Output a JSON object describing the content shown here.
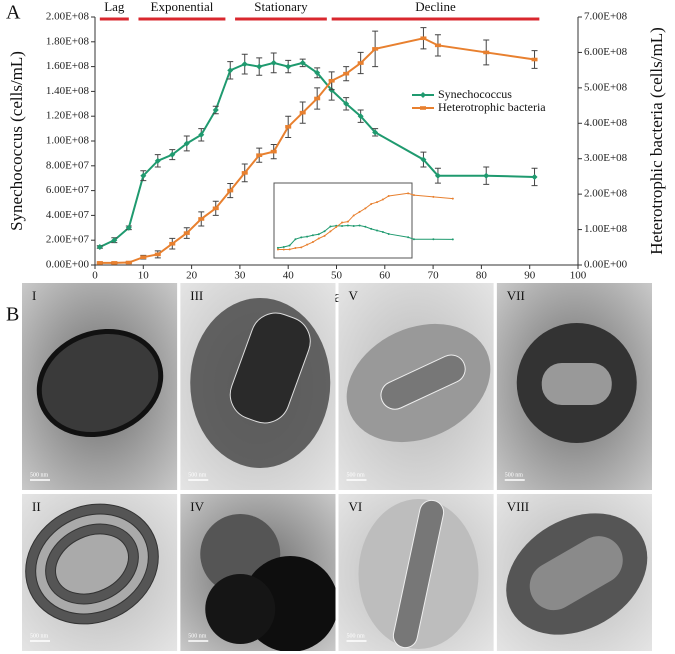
{
  "chart_data": {
    "type": "line",
    "panel_label": "A",
    "x_label": "Day",
    "y_label": "Synechococcus (cells/mL)",
    "y2_label": "Heterotrophic bacteria (cells/mL)",
    "x": [
      1,
      4,
      7,
      10,
      13,
      16,
      19,
      22,
      25,
      28,
      31,
      34,
      37,
      40,
      43,
      46,
      49,
      52,
      55,
      58,
      68,
      71,
      81,
      91
    ],
    "series": [
      {
        "name": "Synechococcus",
        "color": "#1f9a6f",
        "marker": "diamond",
        "values": [
          14500000,
          20000000,
          30000000,
          72000000,
          84000000,
          89000000,
          98000000,
          105000000,
          125000000,
          157000000,
          162000000,
          160000000,
          163000000,
          160000000,
          163000000,
          155000000,
          141000000,
          130000000,
          120000000,
          107000000,
          85000000,
          72000000,
          72000000,
          71000000
        ],
        "errors": [
          1000000,
          2000000,
          1500000,
          4000000,
          5000000,
          4000000,
          6000000,
          5000000,
          3000000,
          7000000,
          8000000,
          7000000,
          8000000,
          5000000,
          3000000,
          4000000,
          8000000,
          5000000,
          5000000,
          3000000,
          6000000,
          6000000,
          7000000,
          7000000
        ]
      },
      {
        "name": "Heterotrophic bacteria",
        "color": "#e8802f",
        "marker": "square",
        "axis": "y2",
        "values": [
          6000000,
          6000000,
          7000000,
          22000000,
          30000000,
          60000000,
          90000000,
          130000000,
          160000000,
          210000000,
          260000000,
          310000000,
          320000000,
          390000000,
          430000000,
          470000000,
          520000000,
          540000000,
          570000000,
          610000000,
          640000000,
          620000000,
          600000000,
          580000000
        ],
        "errors": [
          2000000,
          2000000,
          2000000,
          5000000,
          10000000,
          15000000,
          15000000,
          20000000,
          20000000,
          20000000,
          25000000,
          20000000,
          20000000,
          30000000,
          30000000,
          30000000,
          25000000,
          20000000,
          30000000,
          50000000,
          30000000,
          30000000,
          35000000,
          25000000
        ]
      }
    ],
    "xlim": [
      0,
      100
    ],
    "xticks": [
      0,
      10,
      20,
      30,
      40,
      50,
      60,
      70,
      80,
      90,
      100
    ],
    "ylim": [
      0,
      200000000
    ],
    "yticks": [
      {
        "value": 0,
        "label": "0.00E+00"
      },
      {
        "value": 20000000,
        "label": "2.00E+07"
      },
      {
        "value": 40000000,
        "label": "4.00E+07"
      },
      {
        "value": 60000000,
        "label": "6.00E+07"
      },
      {
        "value": 80000000,
        "label": "8.00E+07"
      },
      {
        "value": 100000000,
        "label": "1.00E+08"
      },
      {
        "value": 120000000,
        "label": "1.20E+08"
      },
      {
        "value": 140000000,
        "label": "1.40E+08"
      },
      {
        "value": 160000000,
        "label": "1.60E+08"
      },
      {
        "value": 180000000,
        "label": "1.80E+08"
      },
      {
        "value": 200000000,
        "label": "2.00E+08"
      }
    ],
    "y2lim": [
      0,
      700000000
    ],
    "y2ticks": [
      {
        "value": 0,
        "label": "0.00E+00"
      },
      {
        "value": 100000000,
        "label": "1.00E+08"
      },
      {
        "value": 200000000,
        "label": "2.00E+08"
      },
      {
        "value": 300000000,
        "label": "3.00E+08"
      },
      {
        "value": 400000000,
        "label": "4.00E+08"
      },
      {
        "value": 500000000,
        "label": "5.00E+08"
      },
      {
        "value": 600000000,
        "label": "6.00E+08"
      },
      {
        "value": 700000000,
        "label": "7.00E+08"
      }
    ],
    "phases": [
      {
        "label": "Lag",
        "start": 1,
        "end": 7,
        "color": "#d9272e"
      },
      {
        "label": "Exponential",
        "start": 9,
        "end": 27,
        "color": "#d9272e"
      },
      {
        "label": "Stationary",
        "start": 29,
        "end": 48,
        "color": "#d9272e"
      },
      {
        "label": "Decline",
        "start": 49,
        "end": 92,
        "color": "#d9272e"
      }
    ],
    "legend": "right",
    "inset": true
  },
  "panel_b": {
    "panel_label": "B",
    "images": [
      {
        "label": "I",
        "scale": "500 nm"
      },
      {
        "label": "II",
        "scale": "500 nm"
      },
      {
        "label": "III",
        "scale": "500 nm"
      },
      {
        "label": "IV",
        "scale": "500 nm"
      },
      {
        "label": "V",
        "scale": "500 nm"
      },
      {
        "label": "VI",
        "scale": "500 nm"
      },
      {
        "label": "VII",
        "scale": "500 nm"
      },
      {
        "label": "VIII"
      }
    ]
  }
}
